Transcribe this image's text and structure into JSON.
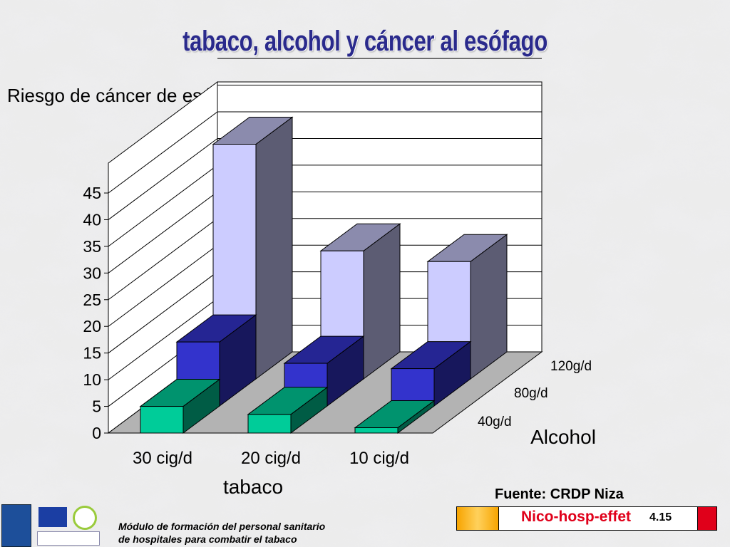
{
  "slide": {
    "title": "tabaco, alcohol y cáncer al esófago",
    "source": "Fuente: CRDP Niza",
    "strip_text": "Nico-hosp-effet",
    "strip_code": "4.15",
    "footer_line1": "Módulo de formación del personal sanitario",
    "footer_line2": "de hospitales  para combatir el tabaco"
  },
  "colors": {
    "series_40": "#00cc99",
    "series_80": "#3333cc",
    "series_120": "#ccccff",
    "floor": "#b3b3b3"
  },
  "chart_data": {
    "type": "bar",
    "subtype": "3d-clustered-depth",
    "ylabel": "Riesgo de cáncer de esófago",
    "xlabel": "tabaco",
    "zlabel": "Alcohol",
    "categories": [
      "30 cig/d",
      "20 cig/d",
      "10 cig/d"
    ],
    "series": [
      {
        "name": "40g/d",
        "values": [
          5,
          3.5,
          1
        ]
      },
      {
        "name": "80g/d",
        "values": [
          12,
          8,
          7
        ]
      },
      {
        "name": "120g/d",
        "values": [
          44,
          24,
          22
        ]
      }
    ],
    "yticks": [
      "0",
      "5",
      "10",
      "15",
      "20",
      "25",
      "30",
      "35",
      "40",
      "45"
    ],
    "ylim": [
      0,
      45
    ],
    "grid": true
  }
}
